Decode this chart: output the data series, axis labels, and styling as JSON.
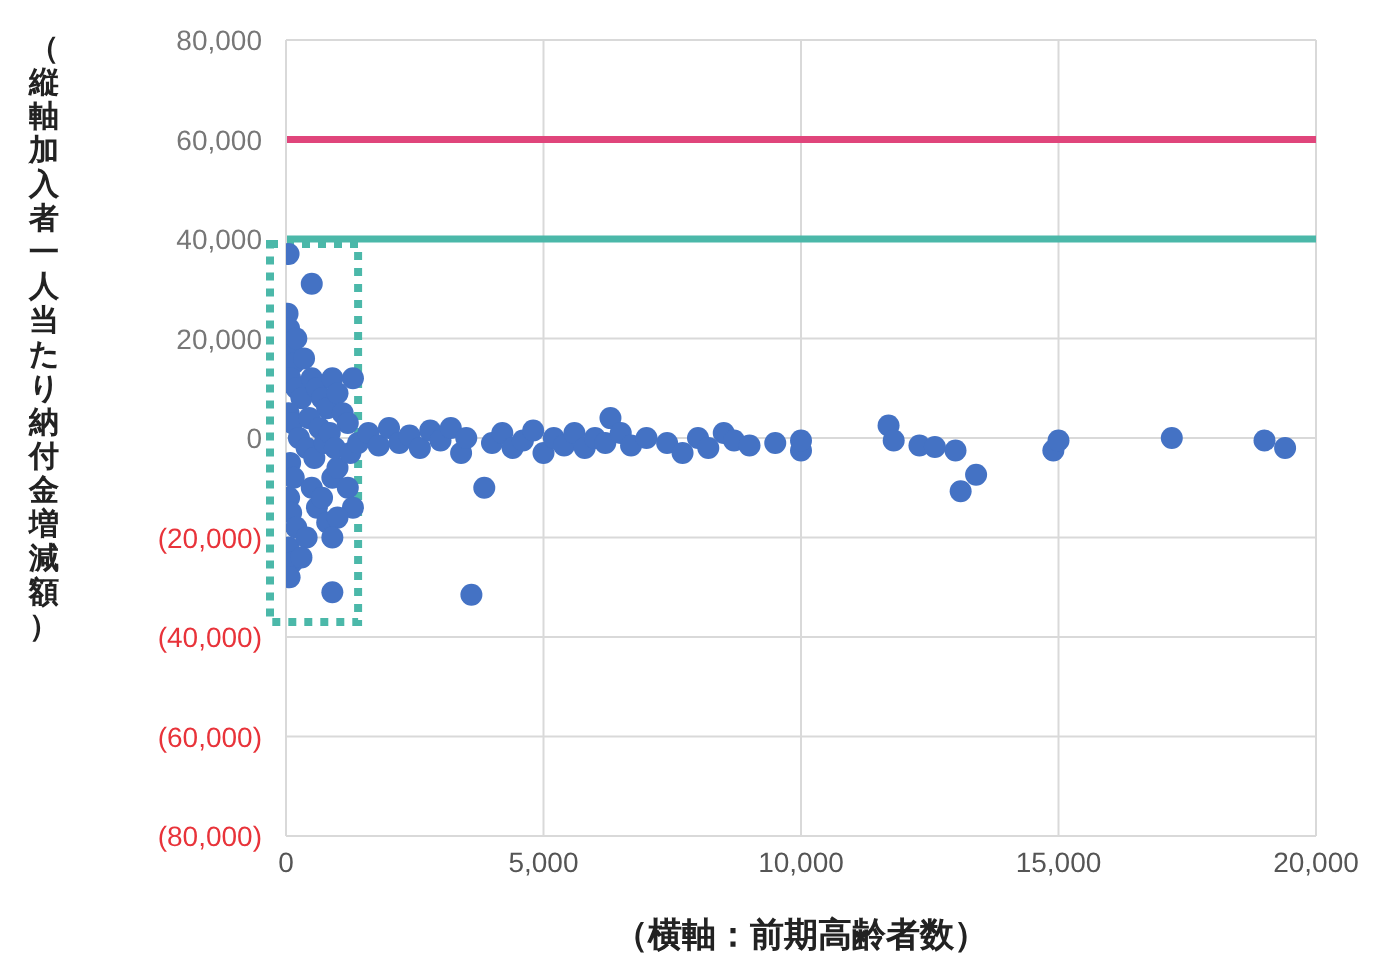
{
  "chart_data": {
    "type": "scatter",
    "xlabel": "（横軸：前期高齢者数）",
    "ylabel": "（縦軸加入者一人当たり納付金増減額）",
    "xlim": [
      0,
      20000
    ],
    "xticks": [
      {
        "value": 0,
        "label": "0"
      },
      {
        "value": 5000,
        "label": "5,000"
      },
      {
        "value": 10000,
        "label": "10,000"
      },
      {
        "value": 15000,
        "label": "15,000"
      },
      {
        "value": 20000,
        "label": "20,000"
      }
    ],
    "ylim": [
      -80000,
      80000
    ],
    "yticks": [
      {
        "value": -80000,
        "label": "(80,000)"
      },
      {
        "value": -60000,
        "label": "(60,000)"
      },
      {
        "value": -40000,
        "label": "(40,000)"
      },
      {
        "value": -20000,
        "label": "(20,000)"
      },
      {
        "value": 0,
        "label": "0"
      },
      {
        "value": 20000,
        "label": "20,000"
      },
      {
        "value": 40000,
        "label": "40,000"
      },
      {
        "value": 60000,
        "label": "60,000"
      },
      {
        "value": 80000,
        "label": "80,000"
      }
    ],
    "grid": true,
    "marker": "circle",
    "ref_lines": [
      {
        "axis": "y",
        "value": 60000,
        "color": "#e0457b"
      },
      {
        "axis": "y",
        "value": 40000,
        "color": "#4bb8a9"
      }
    ],
    "series": [
      {
        "color": "#4472c4",
        "x": [
          50,
          500,
          900,
          3600,
          30,
          60,
          100,
          150,
          80,
          200,
          300,
          50,
          120,
          250,
          400,
          80,
          150,
          60,
          100,
          200,
          50,
          120,
          70,
          500,
          600,
          700,
          800,
          900,
          1000,
          1100,
          1200,
          1300,
          500,
          600,
          700,
          800,
          900,
          1000,
          1200,
          1300,
          400,
          300,
          200,
          350,
          450,
          550,
          650,
          750,
          850,
          950,
          1250,
          1400,
          1000,
          900,
          1600,
          1800,
          2000,
          2200,
          2400,
          2600,
          2800,
          3000,
          3200,
          3400,
          3500,
          3850,
          4000,
          4200,
          4400,
          4600,
          4800,
          5000,
          5200,
          5400,
          5600,
          5800,
          6000,
          6200,
          6300,
          6500,
          6700,
          7000,
          7400,
          7700,
          8000,
          8200,
          8500,
          8700,
          9000,
          9500,
          10000,
          10000,
          11700,
          11800,
          12300,
          12600,
          13000,
          13100,
          13400,
          14900,
          15000,
          17200,
          19000,
          19400
        ],
        "values": [
          37000,
          31000,
          -31000,
          -31500,
          25000,
          22000,
          18000,
          15000,
          12000,
          10000,
          8000,
          5000,
          3000,
          0,
          -2000,
          -5000,
          -8000,
          -12000,
          -15000,
          -18000,
          -22000,
          -25000,
          -28000,
          12000,
          10000,
          8000,
          6000,
          12000,
          9000,
          5000,
          3000,
          12000,
          -10000,
          -14000,
          -12000,
          -17000,
          -8000,
          -6000,
          -10000,
          -14000,
          -20000,
          -24000,
          20000,
          16000,
          4000,
          -4000,
          2000,
          -1000,
          1000,
          -2000,
          -3000,
          -1000,
          -16000,
          -20000,
          1000,
          -1500,
          2000,
          -1000,
          500,
          -2000,
          1500,
          -500,
          2000,
          -3000,
          0,
          -10000,
          -1000,
          1000,
          -2000,
          -500,
          1500,
          -3000,
          0,
          -1500,
          1000,
          -2000,
          0,
          -1000,
          4000,
          1000,
          -1500,
          0,
          -1000,
          -3000,
          0,
          -2000,
          1000,
          -500,
          -1500,
          -1000,
          -2500,
          -500,
          2500,
          -500,
          -1500,
          -1800,
          -2500,
          -10700,
          -7400,
          -2500,
          -500,
          0,
          -500,
          -2000
        ]
      }
    ]
  }
}
